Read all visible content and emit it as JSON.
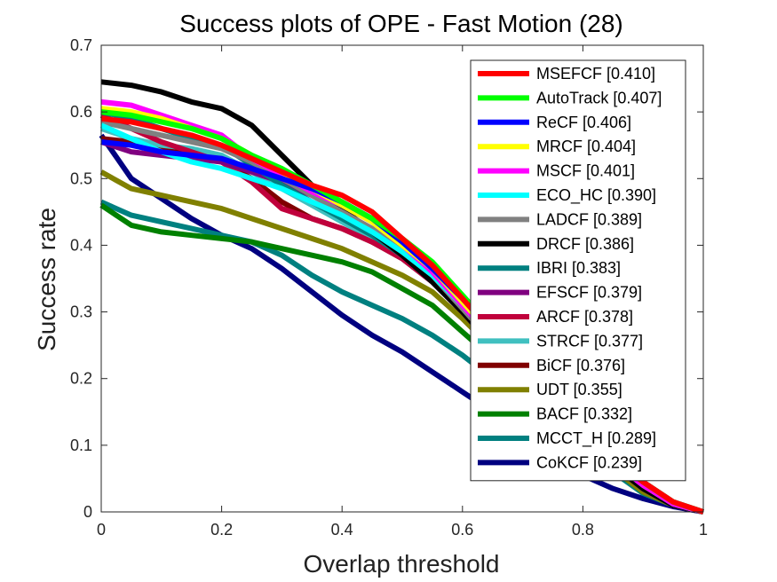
{
  "chart_data": {
    "type": "line",
    "title": "Success plots of OPE - Fast Motion (28)",
    "xlabel": "Overlap threshold",
    "ylabel": "Success rate",
    "xlim": [
      0,
      1
    ],
    "ylim": [
      0,
      0.7
    ],
    "xticks": [
      "0",
      "0.2",
      "0.4",
      "0.6",
      "0.8",
      "1"
    ],
    "yticks": [
      "0",
      "0.1",
      "0.2",
      "0.3",
      "0.4",
      "0.5",
      "0.6",
      "0.7"
    ],
    "grid": false,
    "legend_position": "top-right",
    "x": [
      0,
      0.05,
      0.1,
      0.15,
      0.2,
      0.25,
      0.3,
      0.35,
      0.4,
      0.45,
      0.5,
      0.55,
      0.6,
      0.65,
      0.7,
      0.75,
      0.8,
      0.85,
      0.9,
      0.95,
      1.0
    ],
    "series": [
      {
        "name": "MSEFCF [0.410]",
        "color": "#ff0000",
        "values": [
          0.59,
          0.585,
          0.575,
          0.565,
          0.55,
          0.53,
          0.51,
          0.49,
          0.475,
          0.45,
          0.41,
          0.37,
          0.32,
          0.27,
          0.22,
          0.17,
          0.12,
          0.08,
          0.045,
          0.015,
          0.0
        ]
      },
      {
        "name": "AutoTrack [0.407]",
        "color": "#00ff00",
        "values": [
          0.6,
          0.595,
          0.585,
          0.575,
          0.56,
          0.535,
          0.515,
          0.49,
          0.465,
          0.44,
          0.41,
          0.375,
          0.325,
          0.275,
          0.22,
          0.17,
          0.12,
          0.08,
          0.045,
          0.015,
          0.0
        ]
      },
      {
        "name": "ReCF [0.406]",
        "color": "#0000ff",
        "values": [
          0.555,
          0.55,
          0.54,
          0.535,
          0.53,
          0.515,
          0.5,
          0.485,
          0.465,
          0.44,
          0.405,
          0.365,
          0.32,
          0.27,
          0.22,
          0.17,
          0.12,
          0.08,
          0.045,
          0.015,
          0.0
        ]
      },
      {
        "name": "MRCF [0.404]",
        "color": "#ffff00",
        "values": [
          0.605,
          0.6,
          0.59,
          0.575,
          0.56,
          0.535,
          0.51,
          0.485,
          0.46,
          0.435,
          0.4,
          0.365,
          0.315,
          0.265,
          0.215,
          0.165,
          0.12,
          0.08,
          0.045,
          0.015,
          0.0
        ]
      },
      {
        "name": "MSCF [0.401]",
        "color": "#ff00ff",
        "values": [
          0.615,
          0.61,
          0.595,
          0.58,
          0.565,
          0.53,
          0.505,
          0.48,
          0.46,
          0.435,
          0.4,
          0.36,
          0.31,
          0.26,
          0.21,
          0.165,
          0.115,
          0.075,
          0.04,
          0.012,
          0.0
        ]
      },
      {
        "name": "ECO_HC [0.390]",
        "color": "#00ffff",
        "values": [
          0.58,
          0.56,
          0.54,
          0.525,
          0.515,
          0.5,
          0.485,
          0.465,
          0.445,
          0.42,
          0.39,
          0.355,
          0.31,
          0.26,
          0.21,
          0.16,
          0.115,
          0.075,
          0.04,
          0.012,
          0.0
        ]
      },
      {
        "name": "LADCF [0.389]",
        "color": "#808080",
        "values": [
          0.585,
          0.575,
          0.565,
          0.555,
          0.545,
          0.525,
          0.5,
          0.475,
          0.45,
          0.425,
          0.39,
          0.355,
          0.305,
          0.255,
          0.205,
          0.16,
          0.115,
          0.075,
          0.04,
          0.012,
          0.0
        ]
      },
      {
        "name": "DRCF [0.386]",
        "color": "#000000",
        "values": [
          0.645,
          0.64,
          0.63,
          0.615,
          0.605,
          0.58,
          0.535,
          0.49,
          0.455,
          0.42,
          0.385,
          0.345,
          0.3,
          0.25,
          0.2,
          0.155,
          0.11,
          0.07,
          0.035,
          0.01,
          0.0
        ]
      },
      {
        "name": "IBRI [0.383]",
        "color": "#008080",
        "values": [
          0.6,
          0.59,
          0.575,
          0.56,
          0.55,
          0.52,
          0.49,
          0.465,
          0.44,
          0.415,
          0.385,
          0.35,
          0.305,
          0.255,
          0.205,
          0.16,
          0.115,
          0.075,
          0.04,
          0.012,
          0.0
        ]
      },
      {
        "name": "EFSCF [0.379]",
        "color": "#800080",
        "values": [
          0.555,
          0.54,
          0.535,
          0.53,
          0.525,
          0.51,
          0.495,
          0.475,
          0.45,
          0.42,
          0.385,
          0.345,
          0.3,
          0.25,
          0.2,
          0.155,
          0.11,
          0.07,
          0.035,
          0.01,
          0.0
        ]
      },
      {
        "name": "ARCF [0.378]",
        "color": "#c0003c",
        "values": [
          0.595,
          0.575,
          0.555,
          0.54,
          0.525,
          0.495,
          0.455,
          0.44,
          0.425,
          0.405,
          0.38,
          0.345,
          0.3,
          0.25,
          0.2,
          0.155,
          0.11,
          0.07,
          0.035,
          0.01,
          0.0
        ]
      },
      {
        "name": "STRCF [0.377]",
        "color": "#40c0c0",
        "values": [
          0.575,
          0.56,
          0.55,
          0.545,
          0.535,
          0.51,
          0.485,
          0.46,
          0.435,
          0.41,
          0.38,
          0.345,
          0.3,
          0.25,
          0.2,
          0.155,
          0.11,
          0.07,
          0.035,
          0.01,
          0.0
        ]
      },
      {
        "name": "BiCF [0.376]",
        "color": "#800000",
        "values": [
          0.56,
          0.555,
          0.545,
          0.535,
          0.525,
          0.5,
          0.465,
          0.44,
          0.425,
          0.405,
          0.38,
          0.345,
          0.3,
          0.25,
          0.2,
          0.155,
          0.11,
          0.07,
          0.035,
          0.01,
          0.0
        ]
      },
      {
        "name": "UDT [0.355]",
        "color": "#808000",
        "values": [
          0.51,
          0.485,
          0.475,
          0.465,
          0.455,
          0.44,
          0.425,
          0.41,
          0.395,
          0.375,
          0.355,
          0.33,
          0.29,
          0.245,
          0.195,
          0.15,
          0.105,
          0.065,
          0.03,
          0.01,
          0.0
        ]
      },
      {
        "name": "BACF [0.332]",
        "color": "#008000",
        "values": [
          0.46,
          0.43,
          0.42,
          0.415,
          0.41,
          0.405,
          0.395,
          0.385,
          0.375,
          0.36,
          0.335,
          0.31,
          0.27,
          0.23,
          0.185,
          0.14,
          0.1,
          0.065,
          0.03,
          0.01,
          0.0
        ]
      },
      {
        "name": "MCCT_H [0.289]",
        "color": "#008080",
        "values": [
          0.465,
          0.445,
          0.435,
          0.425,
          0.415,
          0.405,
          0.385,
          0.355,
          0.33,
          0.31,
          0.29,
          0.265,
          0.235,
          0.2,
          0.165,
          0.125,
          0.09,
          0.06,
          0.028,
          0.01,
          0.0
        ]
      },
      {
        "name": "CoKCF [0.239]",
        "color": "#000080",
        "values": [
          0.565,
          0.5,
          0.47,
          0.44,
          0.415,
          0.395,
          0.365,
          0.33,
          0.295,
          0.265,
          0.24,
          0.21,
          0.18,
          0.15,
          0.115,
          0.085,
          0.055,
          0.035,
          0.02,
          0.008,
          0.0
        ]
      }
    ]
  }
}
